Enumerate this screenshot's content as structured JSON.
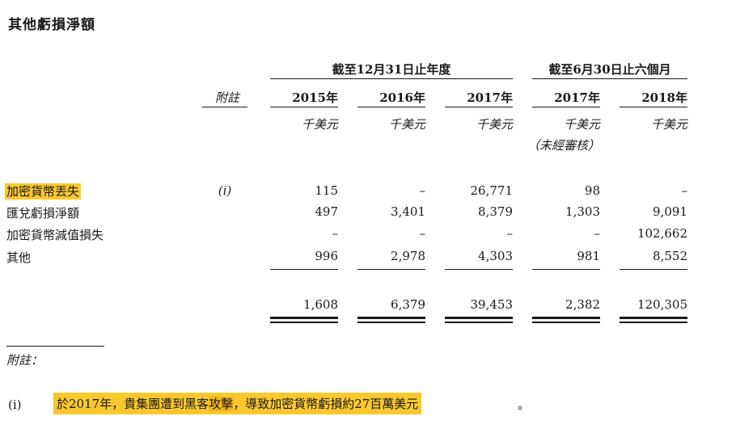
{
  "title": "其他虧損淨額",
  "group_year": "截至12月31日止年度",
  "group_half": "截至6月30日止六個月",
  "note_header": "附註",
  "columns": [
    {
      "year": "2015年",
      "unit": "千美元"
    },
    {
      "year": "2016年",
      "unit": "千美元"
    },
    {
      "year": "2017年",
      "unit": "千美元"
    },
    {
      "year": "2017年",
      "unit": "千美元",
      "sub": "（未經審核）"
    },
    {
      "year": "2018年",
      "unit": "千美元"
    }
  ],
  "rows": [
    {
      "label": "加密貨幣丟失",
      "note": "(i)",
      "values": [
        "115",
        "–",
        "26,771",
        "98",
        "–"
      ]
    },
    {
      "label": "匯兌虧損淨額",
      "note": "",
      "values": [
        "497",
        "3,401",
        "8,379",
        "1,303",
        "9,091"
      ]
    },
    {
      "label": "加密貨幣減值損失",
      "note": "",
      "values": [
        "–",
        "–",
        "–",
        "–",
        "102,662"
      ]
    },
    {
      "label": "其他",
      "note": "",
      "values": [
        "996",
        "2,978",
        "4,303",
        "981",
        "8,552"
      ]
    }
  ],
  "totals": [
    "1,608",
    "6,379",
    "39,453",
    "2,382",
    "120,305"
  ],
  "footnote_title": "附註：",
  "footnote": {
    "marker": "(i)",
    "text_a": "於2017年，貴集團遭到黑客",
    "text_b": "攻擊",
    "text_c": "，導致加密貨幣虧損約27百萬美元",
    "text_end": "。"
  },
  "highlight_color": "#f9c82f"
}
